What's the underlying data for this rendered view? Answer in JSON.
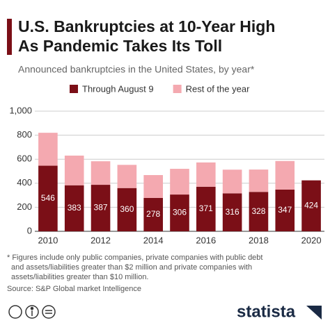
{
  "chart_data": {
    "type": "stacked_bar",
    "title": [
      "U.S. Bankruptcies at 10-Year High",
      "As Pandemic Takes Its Toll"
    ],
    "subtitle": "Announced bankruptcies in the United States, by year*",
    "categories": [
      "2010",
      null,
      "2012",
      null,
      "2014",
      null,
      "2016",
      null,
      "2018",
      null,
      "2020"
    ],
    "series": [
      {
        "name": "Through August 9",
        "color": "#7b0f17",
        "values": [
          546,
          383,
          387,
          360,
          278,
          306,
          371,
          316,
          328,
          347,
          424
        ]
      },
      {
        "name": "Rest of the year",
        "color": "#f4a9b0",
        "values": [
          274,
          247,
          196,
          193,
          190,
          214,
          202,
          197,
          186,
          238,
          null
        ]
      }
    ],
    "ylim": [
      0,
      1000
    ],
    "yticks": [
      0,
      200,
      400,
      600,
      800,
      {
        "value": 1000,
        "label": "1,000"
      }
    ],
    "grid": true,
    "footnote": [
      "* Figures include only public companies, private companies with public debt",
      "and assets/liabilities greater than $2 million and private companies with",
      "assets/liabilities greater than $10 million."
    ],
    "source": "Source: S&P Global market Intelligence",
    "brand": "statista"
  }
}
